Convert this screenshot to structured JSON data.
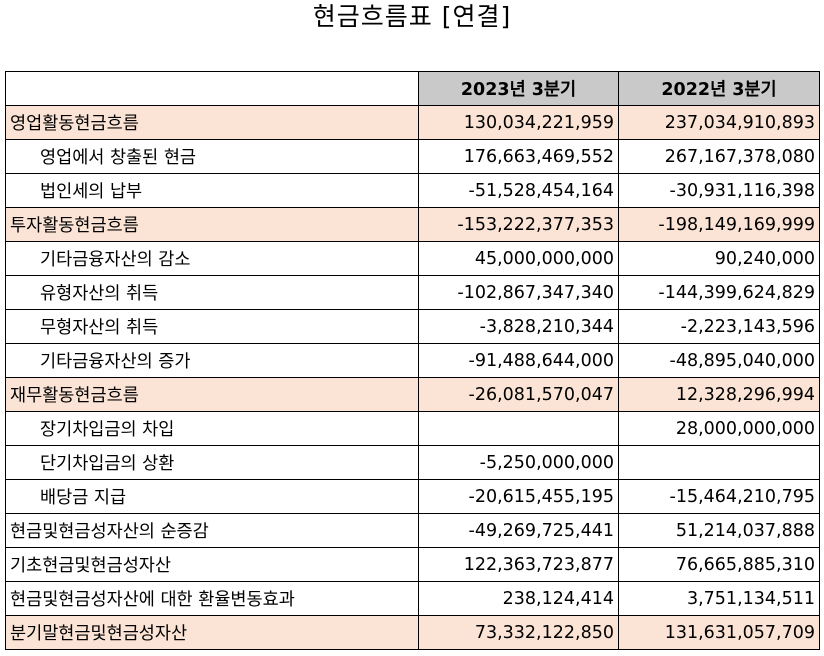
{
  "title": "현금흐름표 [연결]",
  "columns": [
    "2023년 3분기",
    "2022년 3분기"
  ],
  "rows": [
    {
      "label": "영업활동현금흐름",
      "kind": "sec",
      "v1": "130,034,221,959",
      "v2": "237,034,910,893"
    },
    {
      "label": "영업에서 창출된 현금",
      "kind": "sub",
      "v1": "176,663,469,552",
      "v2": "267,167,378,080"
    },
    {
      "label": "법인세의 납부",
      "kind": "sub",
      "v1": "-51,528,454,164",
      "v2": "-30,931,116,398"
    },
    {
      "label": "투자활동현금흐름",
      "kind": "sec",
      "v1": "-153,222,377,353",
      "v2": "-198,149,169,999"
    },
    {
      "label": "기타금융자산의 감소",
      "kind": "sub",
      "v1": "45,000,000,000",
      "v2": "90,240,000"
    },
    {
      "label": "유형자산의 취득",
      "kind": "sub",
      "v1": "-102,867,347,340",
      "v2": "-144,399,624,829"
    },
    {
      "label": "무형자산의 취득",
      "kind": "sub",
      "v1": "-3,828,210,344",
      "v2": "-2,223,143,596"
    },
    {
      "label": "기타금융자산의 증가",
      "kind": "sub",
      "v1": "-91,488,644,000",
      "v2": "-48,895,040,000"
    },
    {
      "label": "재무활동현금흐름",
      "kind": "sec",
      "v1": "-26,081,570,047",
      "v2": "12,328,296,994"
    },
    {
      "label": "장기차입금의 차입",
      "kind": "sub",
      "v1": "",
      "v2": "28,000,000,000"
    },
    {
      "label": "단기차입금의 상환",
      "kind": "sub",
      "v1": "-5,250,000,000",
      "v2": ""
    },
    {
      "label": "배당금 지급",
      "kind": "sub",
      "v1": "-20,615,455,195",
      "v2": "-15,464,210,795"
    },
    {
      "label": "현금및현금성자산의 순증감",
      "kind": "plain",
      "v1": "-49,269,725,441",
      "v2": "51,214,037,888"
    },
    {
      "label": "기초현금및현금성자산",
      "kind": "plain",
      "v1": "122,363,723,877",
      "v2": "76,665,885,310"
    },
    {
      "label": "현금및현금성자산에 대한 환율변동효과",
      "kind": "plain",
      "v1": "238,124,414",
      "v2": "3,751,134,511"
    },
    {
      "label": "분기말현금및현금성자산",
      "kind": "sec",
      "v1": "73,332,122,850",
      "v2": "131,631,057,709"
    }
  ],
  "colors": {
    "section_fill": "#fbe4d6",
    "header_fill": "#c9c9c9"
  }
}
